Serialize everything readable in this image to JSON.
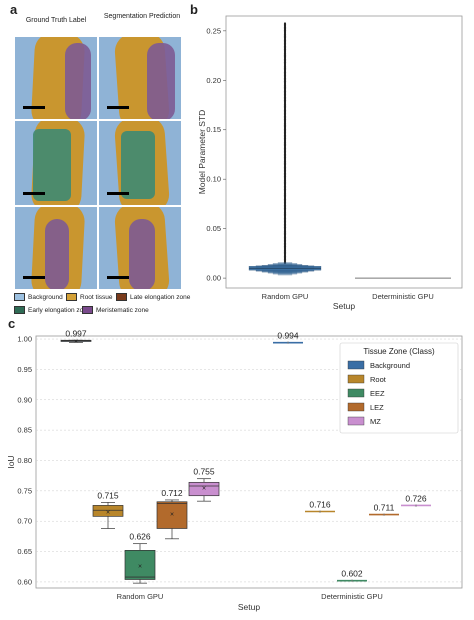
{
  "panel_a": {
    "letter": "a",
    "headers": [
      "Ground Truth Label",
      "Segmentation Prediction"
    ],
    "legend": [
      {
        "label": "Background",
        "color": "#9cc0e0"
      },
      {
        "label": "Root tissue",
        "color": "#d4a137"
      },
      {
        "label": "Late elongation zone",
        "color": "#7a3b1c"
      },
      {
        "label": "Early elongation zone",
        "color": "#2f6b55"
      },
      {
        "label": "Meristematic zone",
        "color": "#7a4a8c"
      }
    ],
    "colors": {
      "background": "#8fb3d6",
      "root": "#c9962f",
      "eez": "#3e8a73",
      "mz": "#7d5a93",
      "scale_bar": "#000000"
    }
  },
  "chart_data": [
    {
      "panel": "b",
      "type": "boxen",
      "xlabel": "Setup",
      "ylabel": "Model Parameter STD",
      "categories": [
        "Random GPU",
        "Deterministic GPU"
      ],
      "ylim": [
        -0.01,
        0.265
      ],
      "yticks": [
        "0.00",
        "0.05",
        "0.10",
        "0.15",
        "0.20",
        "0.25"
      ],
      "ytick_values": [
        0,
        0.05,
        0.1,
        0.15,
        0.2,
        0.25
      ],
      "series": [
        {
          "category": "Random GPU",
          "median": 0.01,
          "box_low": 0.008,
          "box_high": 0.012,
          "outlier_max": 0.258,
          "color": "#3b6fa0"
        },
        {
          "category": "Deterministic GPU",
          "median": 0.0,
          "box_low": 0.0,
          "box_high": 0.0,
          "outlier_max": 0.0,
          "color": "#3b6fa0"
        }
      ]
    },
    {
      "panel": "c",
      "type": "box",
      "xlabel": "Setup",
      "ylabel": "IoU",
      "categories": [
        "Random GPU",
        "Deterministic GPU"
      ],
      "ylim": [
        0.59,
        1.005
      ],
      "yticks": [
        "0.60",
        "0.65",
        "0.70",
        "0.75",
        "0.80",
        "0.85",
        "0.90",
        "0.95",
        "1.00"
      ],
      "ytick_values": [
        0.6,
        0.65,
        0.7,
        0.75,
        0.8,
        0.85,
        0.9,
        0.95,
        1.0
      ],
      "legend_title": "Tissue Zone (Class)",
      "legend_position": "upper-right",
      "series": [
        {
          "name": "Background",
          "color": "#3a6ea5",
          "random": {
            "mean": 0.997,
            "q1": 0.996,
            "median": 0.997,
            "q3": 0.998,
            "whislo": 0.9945,
            "whishi": 0.998
          },
          "deterministic": 0.994,
          "random_label": "0.997",
          "det_label": "0.994"
        },
        {
          "name": "Root",
          "color": "#b8862b",
          "random": {
            "mean": 0.715,
            "q1": 0.708,
            "median": 0.718,
            "q3": 0.726,
            "whislo": 0.688,
            "whishi": 0.731
          },
          "deterministic": 0.716,
          "random_label": "0.715",
          "det_label": "0.716"
        },
        {
          "name": "EEZ",
          "color": "#3f8a63",
          "random": {
            "mean": 0.626,
            "q1": 0.604,
            "median": 0.608,
            "q3": 0.652,
            "whislo": 0.598,
            "whishi": 0.663
          },
          "deterministic": 0.602,
          "random_label": "0.626",
          "det_label": "0.602"
        },
        {
          "name": "LEZ",
          "color": "#b26a2c",
          "random": {
            "mean": 0.712,
            "q1": 0.688,
            "median": 0.729,
            "q3": 0.732,
            "whislo": 0.671,
            "whishi": 0.735
          },
          "deterministic": 0.711,
          "random_label": "0.712",
          "det_label": "0.711"
        },
        {
          "name": "MZ",
          "color": "#c98fcf",
          "random": {
            "mean": 0.755,
            "q1": 0.742,
            "median": 0.758,
            "q3": 0.764,
            "whislo": 0.733,
            "whishi": 0.77
          },
          "deterministic": 0.726,
          "random_label": "0.755",
          "det_label": "0.726"
        }
      ]
    }
  ],
  "labels": {
    "a": "a",
    "b": "b",
    "c": "c"
  }
}
